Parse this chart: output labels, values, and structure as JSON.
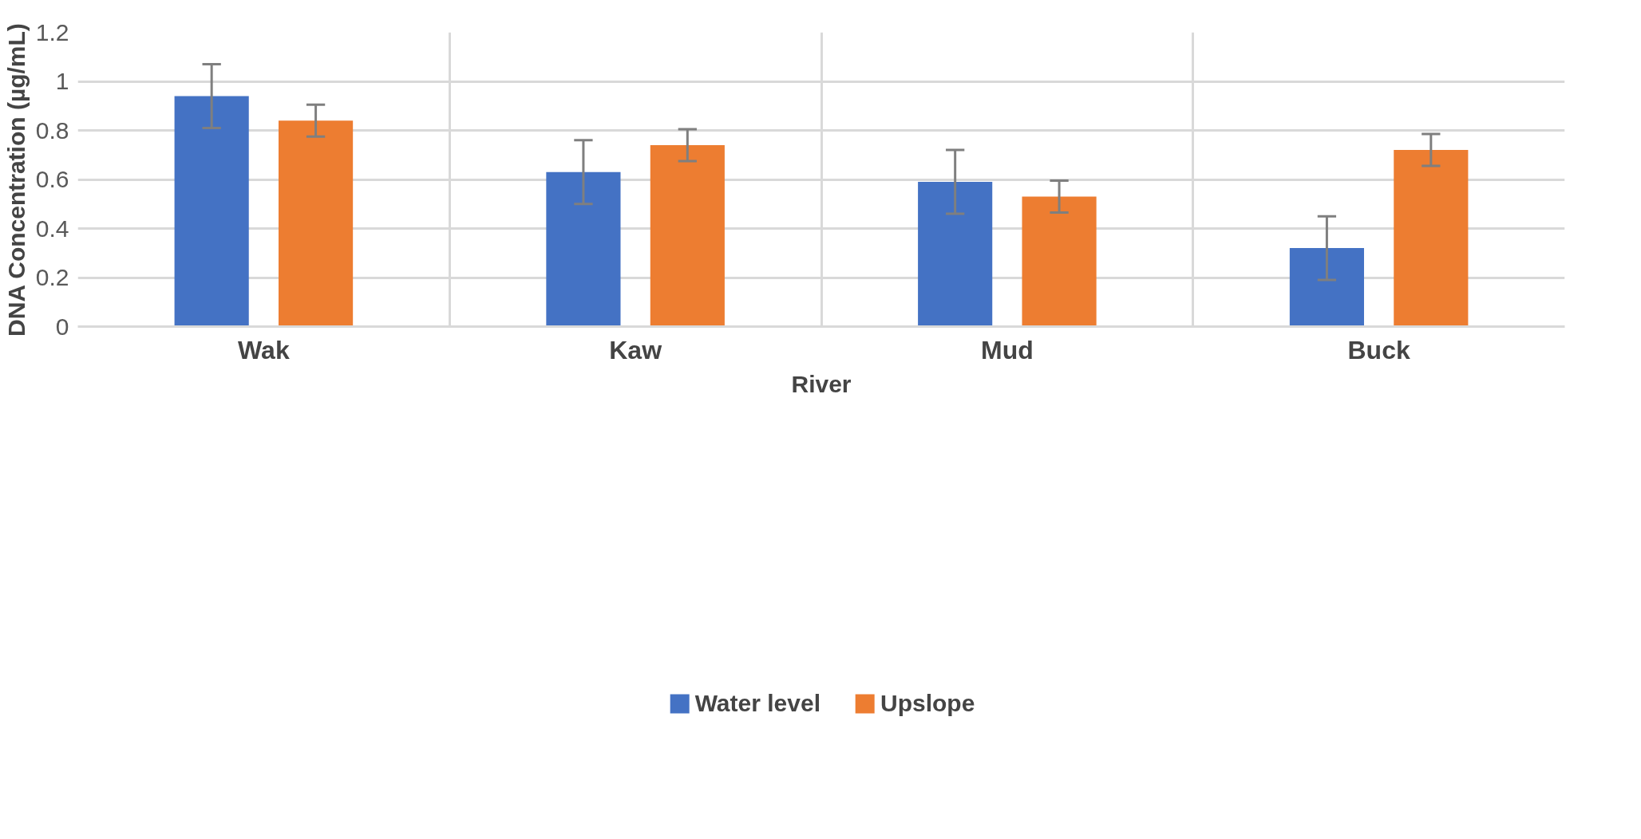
{
  "chart_data": {
    "type": "bar",
    "xlabel": "River",
    "ylabel": "DNA Concentration (µg/mL)",
    "categories": [
      "Wak",
      "Kaw",
      "Mud",
      "Buck"
    ],
    "series": [
      {
        "name": "Water level",
        "color": "#4472c4",
        "values": [
          0.94,
          0.63,
          0.59,
          0.32
        ],
        "errors": [
          0.13,
          0.13,
          0.13,
          0.13
        ]
      },
      {
        "name": "Upslope",
        "color": "#ed7d31",
        "values": [
          0.84,
          0.74,
          0.53,
          0.72
        ],
        "errors": [
          0.065,
          0.065,
          0.065,
          0.065
        ]
      }
    ],
    "ylim": [
      0,
      1.2
    ],
    "yticks": [
      0,
      0.2,
      0.4,
      0.6,
      0.8,
      1,
      1.2
    ],
    "grid": true,
    "legend": "bottom"
  }
}
